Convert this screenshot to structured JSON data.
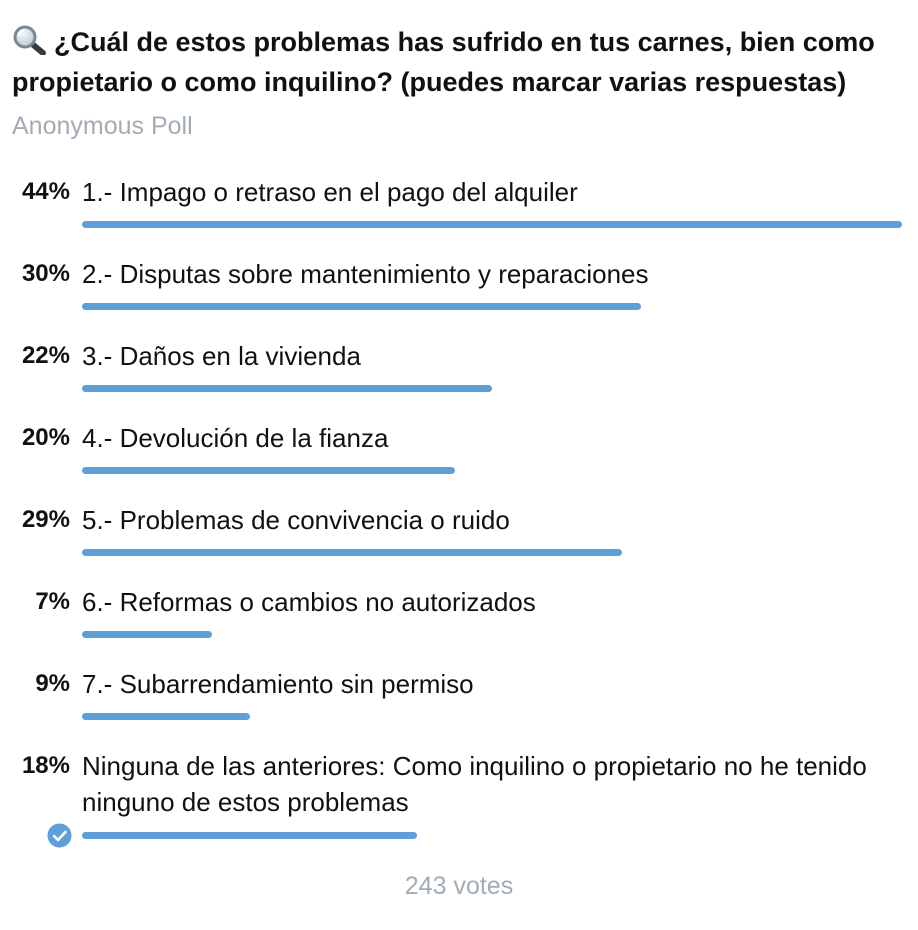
{
  "poll": {
    "question": "¿Cuál de estos problemas has sufrido en tus carnes, bien como propietario o como inquilino? (puedes marcar varias respuestas)",
    "question_icon": "magnifying-glass-icon",
    "type_label": "Anonymous Poll",
    "options": [
      {
        "percent_label": "44%",
        "label": "1.- Impago o retraso en el pago del alquiler",
        "percent": 44,
        "selected": false
      },
      {
        "percent_label": "30%",
        "label": "2.- Disputas sobre mantenimiento y reparaciones",
        "percent": 30,
        "selected": false
      },
      {
        "percent_label": "22%",
        "label": "3.- Daños en la vivienda",
        "percent": 22,
        "selected": false
      },
      {
        "percent_label": "20%",
        "label": "4.- Devolución de la fianza",
        "percent": 20,
        "selected": false
      },
      {
        "percent_label": "29%",
        "label": "5.- Problemas de convivencia o ruido",
        "percent": 29,
        "selected": false
      },
      {
        "percent_label": "7%",
        "label": "6.- Reformas o cambios no autorizados",
        "percent": 7,
        "selected": false
      },
      {
        "percent_label": "9%",
        "label": "7.- Subarrendamiento sin permiso",
        "percent": 9,
        "selected": false
      },
      {
        "percent_label": "18%",
        "label": "Ninguna de las anteriores: Como inquilino o propietario no he tenido ninguno de estos problemas",
        "percent": 18,
        "selected": true
      }
    ],
    "votes_label": "243 votes",
    "colors": {
      "bar": "#5d9fd6",
      "muted_text": "#a3acb5",
      "check": "#5d9fd6"
    }
  }
}
